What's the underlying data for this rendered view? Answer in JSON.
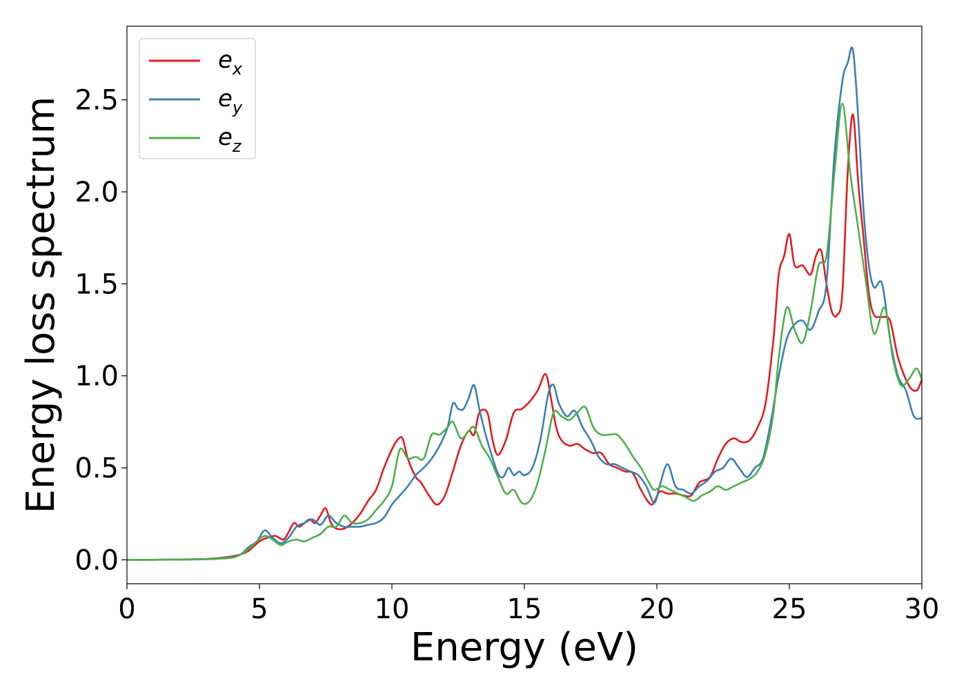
{
  "chart_data": {
    "type": "line",
    "title": "",
    "xlabel": "Energy (eV)",
    "ylabel": "Energy loss spectrum",
    "xlim": [
      0,
      30
    ],
    "ylim": [
      -0.13,
      2.9
    ],
    "xticks": [
      "0",
      "5",
      "10",
      "15",
      "20",
      "25",
      "30"
    ],
    "yticks": [
      "0.0",
      "0.5",
      "1.0",
      "1.5",
      "2.0",
      "2.5"
    ],
    "grid": false,
    "legend_position": "top-left",
    "series": [
      {
        "name": "e_x",
        "label_main": "e",
        "label_sub": "x",
        "color": "#e41a1c",
        "x": [
          0,
          1,
          2,
          3,
          3.5,
          4,
          4.3,
          4.6,
          5,
          5.3,
          5.6,
          5.9,
          6.1,
          6.3,
          6.5,
          6.7,
          6.9,
          7.1,
          7.3,
          7.5,
          7.7,
          7.9,
          8.2,
          8.5,
          8.8,
          9.1,
          9.4,
          9.7,
          10,
          10.2,
          10.4,
          10.6,
          10.9,
          11.1,
          11.4,
          11.7,
          12,
          12.3,
          12.6,
          12.9,
          13.1,
          13.3,
          13.6,
          13.8,
          14,
          14.3,
          14.6,
          14.9,
          15.2,
          15.5,
          15.8,
          16,
          16.2,
          16.4,
          16.7,
          17,
          17.3,
          17.6,
          17.9,
          18.2,
          18.5,
          18.8,
          19.1,
          19.4,
          19.8,
          20.1,
          20.4,
          20.7,
          21,
          21.3,
          21.6,
          22,
          22.3,
          22.6,
          22.9,
          23.2,
          23.5,
          23.8,
          24.1,
          24.4,
          24.6,
          24.8,
          25,
          25.2,
          25.5,
          25.8,
          26,
          26.2,
          26.4,
          26.6,
          26.8,
          27,
          27.2,
          27.4,
          27.6,
          27.8,
          28,
          28.2,
          28.5,
          28.8,
          29.1,
          29.5,
          29.8,
          30
        ],
        "y": [
          0,
          0,
          0.002,
          0.005,
          0.01,
          0.02,
          0.03,
          0.05,
          0.1,
          0.12,
          0.13,
          0.11,
          0.15,
          0.2,
          0.18,
          0.2,
          0.22,
          0.2,
          0.24,
          0.28,
          0.2,
          0.17,
          0.17,
          0.2,
          0.25,
          0.32,
          0.38,
          0.5,
          0.6,
          0.65,
          0.66,
          0.55,
          0.45,
          0.42,
          0.35,
          0.3,
          0.35,
          0.48,
          0.62,
          0.7,
          0.68,
          0.8,
          0.8,
          0.65,
          0.57,
          0.65,
          0.8,
          0.82,
          0.86,
          0.92,
          1.01,
          0.88,
          0.72,
          0.65,
          0.62,
          0.63,
          0.6,
          0.58,
          0.58,
          0.52,
          0.5,
          0.48,
          0.47,
          0.38,
          0.3,
          0.37,
          0.36,
          0.36,
          0.35,
          0.35,
          0.42,
          0.45,
          0.55,
          0.63,
          0.66,
          0.64,
          0.65,
          0.72,
          0.85,
          1.2,
          1.55,
          1.65,
          1.77,
          1.6,
          1.6,
          1.55,
          1.65,
          1.68,
          1.5,
          1.35,
          1.33,
          1.45,
          2.1,
          2.42,
          2.05,
          1.75,
          1.45,
          1.33,
          1.32,
          1.3,
          1.1,
          0.95,
          0.92,
          0.98
        ]
      },
      {
        "name": "e_y",
        "label_main": "e",
        "label_sub": "y",
        "color": "#377eb8",
        "x": [
          0,
          1,
          2,
          3,
          3.5,
          4,
          4.3,
          4.6,
          4.9,
          5.2,
          5.5,
          5.8,
          6.1,
          6.4,
          6.7,
          7,
          7.3,
          7.6,
          7.9,
          8.2,
          8.5,
          8.8,
          9.1,
          9.4,
          9.7,
          10,
          10.3,
          10.6,
          10.9,
          11.2,
          11.5,
          11.8,
          12.1,
          12.3,
          12.5,
          12.7,
          12.9,
          13.1,
          13.3,
          13.5,
          13.7,
          14,
          14.2,
          14.4,
          14.6,
          14.8,
          15,
          15.3,
          15.6,
          15.9,
          16.1,
          16.3,
          16.6,
          16.9,
          17.2,
          17.5,
          17.8,
          18.1,
          18.4,
          18.7,
          19,
          19.3,
          19.6,
          19.9,
          20.1,
          20.4,
          20.7,
          21,
          21.3,
          21.6,
          21.9,
          22.2,
          22.5,
          22.8,
          23.1,
          23.4,
          23.7,
          24,
          24.3,
          24.6,
          24.9,
          25.2,
          25.5,
          25.8,
          26.1,
          26.4,
          26.7,
          27,
          27.2,
          27.4,
          27.6,
          27.8,
          28,
          28.2,
          28.5,
          28.8,
          29.1,
          29.4,
          29.7,
          30
        ],
        "y": [
          0,
          0,
          0.001,
          0.004,
          0.008,
          0.015,
          0.03,
          0.07,
          0.1,
          0.16,
          0.12,
          0.09,
          0.12,
          0.18,
          0.2,
          0.22,
          0.19,
          0.24,
          0.2,
          0.18,
          0.18,
          0.18,
          0.19,
          0.2,
          0.23,
          0.3,
          0.35,
          0.4,
          0.46,
          0.5,
          0.55,
          0.62,
          0.72,
          0.85,
          0.82,
          0.82,
          0.88,
          0.95,
          0.82,
          0.7,
          0.6,
          0.47,
          0.45,
          0.5,
          0.46,
          0.48,
          0.46,
          0.5,
          0.65,
          0.9,
          0.95,
          0.85,
          0.78,
          0.81,
          0.72,
          0.65,
          0.56,
          0.52,
          0.52,
          0.5,
          0.48,
          0.46,
          0.4,
          0.31,
          0.4,
          0.52,
          0.4,
          0.38,
          0.36,
          0.4,
          0.43,
          0.48,
          0.5,
          0.55,
          0.5,
          0.45,
          0.5,
          0.55,
          0.75,
          1.0,
          1.2,
          1.28,
          1.3,
          1.25,
          1.35,
          1.5,
          2.2,
          2.6,
          2.7,
          2.77,
          2.4,
          1.9,
          1.6,
          1.48,
          1.5,
          1.2,
          1.0,
          0.92,
          0.78,
          0.77
        ]
      },
      {
        "name": "e_z",
        "label_main": "e",
        "label_sub": "z",
        "color": "#4daf4a",
        "x": [
          0,
          1,
          2,
          3,
          3.5,
          4,
          4.3,
          4.6,
          4.9,
          5.2,
          5.5,
          5.8,
          6.1,
          6.4,
          6.7,
          7,
          7.3,
          7.6,
          7.9,
          8.2,
          8.5,
          8.8,
          9.1,
          9.4,
          9.7,
          10,
          10.3,
          10.6,
          10.9,
          11.2,
          11.5,
          11.8,
          12.1,
          12.3,
          12.6,
          12.9,
          13.1,
          13.4,
          13.7,
          14,
          14.3,
          14.6,
          14.9,
          15.2,
          15.5,
          15.8,
          16.1,
          16.4,
          16.7,
          17,
          17.3,
          17.6,
          17.9,
          18.2,
          18.5,
          18.8,
          19.1,
          19.4,
          19.7,
          19.9,
          20.2,
          20.5,
          20.8,
          21.1,
          21.4,
          21.7,
          22,
          22.3,
          22.6,
          22.9,
          23.2,
          23.5,
          23.8,
          24.1,
          24.4,
          24.6,
          24.9,
          25.2,
          25.5,
          25.8,
          26.1,
          26.4,
          26.7,
          27,
          27.3,
          27.6,
          27.9,
          28.2,
          28.6,
          28.9,
          29.2,
          29.5,
          29.8,
          30
        ],
        "y": [
          0,
          0,
          0.001,
          0.003,
          0.006,
          0.012,
          0.03,
          0.06,
          0.1,
          0.13,
          0.11,
          0.08,
          0.1,
          0.11,
          0.1,
          0.12,
          0.14,
          0.18,
          0.18,
          0.24,
          0.2,
          0.2,
          0.22,
          0.27,
          0.32,
          0.4,
          0.6,
          0.55,
          0.56,
          0.55,
          0.68,
          0.68,
          0.72,
          0.75,
          0.66,
          0.7,
          0.72,
          0.62,
          0.55,
          0.45,
          0.36,
          0.38,
          0.31,
          0.32,
          0.42,
          0.6,
          0.8,
          0.78,
          0.76,
          0.8,
          0.83,
          0.72,
          0.68,
          0.68,
          0.68,
          0.63,
          0.56,
          0.5,
          0.42,
          0.38,
          0.4,
          0.38,
          0.36,
          0.34,
          0.32,
          0.35,
          0.37,
          0.4,
          0.38,
          0.4,
          0.42,
          0.44,
          0.48,
          0.58,
          0.8,
          1.1,
          1.37,
          1.25,
          1.18,
          1.35,
          1.6,
          1.65,
          2.1,
          2.48,
          2.1,
          1.8,
          1.5,
          1.23,
          1.37,
          1.1,
          0.95,
          0.98,
          1.04,
          0.98
        ]
      }
    ]
  }
}
